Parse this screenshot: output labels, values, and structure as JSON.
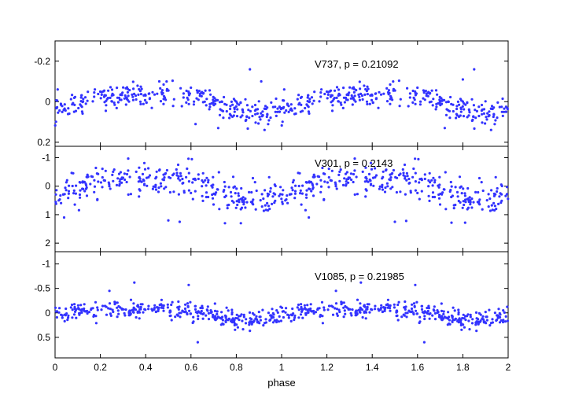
{
  "chart_data": {
    "type": "scatter",
    "xlabel": "phase",
    "xlim": [
      0,
      2
    ],
    "xticks": [
      "0",
      "0.2",
      "0.4",
      "0.6",
      "0.8",
      "1",
      "1.2",
      "1.4",
      "1.6",
      "1.8",
      "2"
    ],
    "marker_color": "#3333ff",
    "panels": [
      {
        "label": "V737, p = 0.21092",
        "ylim_top": -0.3,
        "ylim_bottom": 0.22,
        "yticks": [
          "-0.2",
          "0",
          "0.2"
        ],
        "ytick_values": [
          -0.2,
          0,
          0.2
        ],
        "mean": 0,
        "amplitude": 0.045,
        "harmonic": 0.015,
        "phase_offset": 0.1,
        "scatter": 0.028,
        "points": 300,
        "outliers": [
          [
            0.86,
            -0.16
          ],
          [
            0.91,
            -0.1
          ],
          [
            1.85,
            -0.16
          ],
          [
            1.8,
            -0.11
          ],
          [
            0.72,
            0.13
          ],
          [
            0.62,
            0.11
          ],
          [
            1.72,
            0.13
          ],
          [
            0.46,
            -0.1
          ]
        ]
      },
      {
        "label": "V301, p = 0.2143",
        "ylim_top": -1.4,
        "ylim_bottom": 2.3,
        "yticks": [
          "-1",
          "0",
          "1",
          "2"
        ],
        "ytick_values": [
          -1,
          0,
          1,
          2
        ],
        "mean": 0,
        "amplitude": 0.38,
        "harmonic": 0.08,
        "phase_offset": 0.12,
        "scatter": 0.28,
        "points": 290,
        "outliers": [
          [
            0.5,
            1.2
          ],
          [
            0.55,
            1.25
          ],
          [
            0.75,
            1.3
          ],
          [
            0.82,
            1.3
          ],
          [
            1.12,
            1.1
          ],
          [
            1.5,
            1.25
          ],
          [
            1.55,
            1.22
          ],
          [
            1.75,
            1.28
          ],
          [
            1.81,
            1.28
          ],
          [
            0.04,
            1.1
          ]
        ]
      },
      {
        "label": "V1085, p = 0.21985",
        "ylim_top": -1.25,
        "ylim_bottom": 0.92,
        "yticks": [
          "-1",
          "-0.5",
          "0",
          "0.5"
        ],
        "ytick_values": [
          -1,
          -0.5,
          0,
          0.5
        ],
        "mean": 0,
        "amplitude": 0.12,
        "harmonic": 0.03,
        "phase_offset": 0.15,
        "scatter": 0.09,
        "points": 330,
        "outliers": [
          [
            0.35,
            -0.62
          ],
          [
            0.59,
            -0.57
          ],
          [
            1.59,
            -0.57
          ],
          [
            0.24,
            -0.45
          ],
          [
            1.24,
            -0.45
          ],
          [
            0.63,
            0.6
          ],
          [
            1.63,
            0.6
          ],
          [
            1.35,
            -0.62
          ]
        ]
      }
    ]
  }
}
